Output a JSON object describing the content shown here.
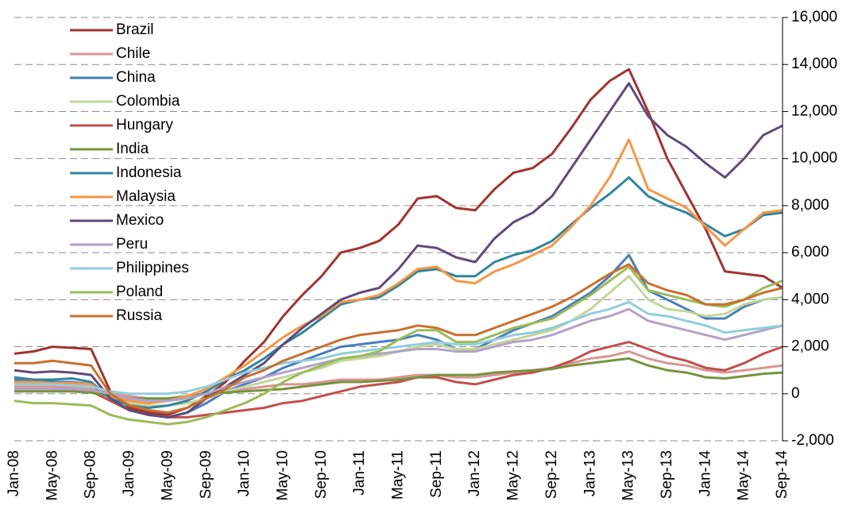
{
  "chart_data": {
    "type": "line",
    "categories": [
      "Jan-08",
      null,
      "May-08",
      null,
      "Sep-08",
      null,
      "Jan-09",
      null,
      "May-09",
      null,
      "Sep-09",
      null,
      "Jan-10",
      null,
      "May-10",
      null,
      "Sep-10",
      null,
      "Jan-11",
      null,
      "May-11",
      null,
      "Sep-11",
      null,
      "Jan-12",
      null,
      "May-12",
      null,
      "Sep-12",
      null,
      "Jan-13",
      null,
      "May-13",
      null,
      "Sep-13",
      null,
      "Jan-14",
      null,
      "May-14",
      null,
      "Sep-14"
    ],
    "ylim": [
      -2000,
      16000
    ],
    "yticks": [
      {
        "value": -2000,
        "label": "-2,000"
      },
      0,
      {
        "value": 2000,
        "label": "2,000"
      },
      {
        "value": 4000,
        "label": "4,000"
      },
      {
        "value": 6000,
        "label": "6,000"
      },
      {
        "value": 8000,
        "label": "8,000"
      },
      {
        "value": 10000,
        "label": "10,000"
      },
      {
        "value": 12000,
        "label": "12,000"
      },
      {
        "value": 14000,
        "label": "14,000"
      },
      {
        "value": 16000,
        "label": "16,000"
      }
    ],
    "grid": true,
    "legend": "upper left",
    "series": [
      {
        "name": "Brazil",
        "color": "#a0342f",
        "values": [
          1700,
          1800,
          2000,
          1950,
          1900,
          100,
          -600,
          -800,
          -900,
          -600,
          -100,
          500,
          1400,
          2200,
          3300,
          4200,
          5000,
          6000,
          6200,
          6500,
          7200,
          8300,
          8400,
          7900,
          7800,
          8700,
          9400,
          9600,
          10200,
          11300,
          12500,
          13300,
          13800,
          12000,
          10000,
          8500,
          7000,
          5200,
          5100,
          5000,
          4500
        ]
      },
      {
        "name": "Chile",
        "color": "#d99694",
        "values": [
          300,
          300,
          300,
          250,
          200,
          0,
          -100,
          -200,
          -200,
          -100,
          0,
          100,
          200,
          300,
          400,
          400,
          500,
          600,
          600,
          600,
          700,
          800,
          800,
          700,
          700,
          800,
          900,
          1000,
          1100,
          1300,
          1500,
          1600,
          1800,
          1500,
          1300,
          1200,
          1000,
          900,
          1000,
          1100,
          1200
        ]
      },
      {
        "name": "China",
        "color": "#4a7ebb",
        "values": [
          600,
          500,
          500,
          500,
          400,
          -300,
          -700,
          -900,
          -1000,
          -800,
          -400,
          100,
          400,
          700,
          1100,
          1400,
          1700,
          2000,
          2100,
          2200,
          2300,
          2500,
          2300,
          1900,
          1900,
          2300,
          2700,
          3000,
          3300,
          3800,
          4300,
          5000,
          5900,
          4400,
          4000,
          3600,
          3200,
          3200,
          3700,
          4000,
          4100
        ]
      },
      {
        "name": "Colombia",
        "color": "#c3d69b",
        "values": [
          100,
          100,
          100,
          100,
          50,
          -200,
          -400,
          -500,
          -500,
          -400,
          -200,
          100,
          300,
          500,
          700,
          900,
          1100,
          1400,
          1500,
          1600,
          1800,
          2000,
          2100,
          1900,
          1900,
          2100,
          2300,
          2500,
          2700,
          3100,
          3600,
          4300,
          5000,
          4000,
          3600,
          3500,
          3300,
          3400,
          3800,
          4000,
          4100
        ]
      },
      {
        "name": "Hungary",
        "color": "#c0504d",
        "values": [
          200,
          150,
          150,
          100,
          100,
          -300,
          -700,
          -900,
          -1000,
          -1000,
          -900,
          -800,
          -700,
          -600,
          -400,
          -300,
          -100,
          100,
          300,
          400,
          500,
          700,
          700,
          500,
          400,
          600,
          800,
          900,
          1100,
          1400,
          1800,
          2000,
          2200,
          1900,
          1600,
          1400,
          1100,
          1000,
          1300,
          1700,
          2000
        ]
      },
      {
        "name": "India",
        "color": "#77933c",
        "values": [
          100,
          100,
          100,
          100,
          50,
          -100,
          -200,
          -200,
          -200,
          -100,
          0,
          50,
          100,
          150,
          200,
          300,
          400,
          500,
          500,
          550,
          600,
          700,
          800,
          800,
          800,
          900,
          950,
          1000,
          1050,
          1200,
          1300,
          1400,
          1500,
          1200,
          1000,
          900,
          700,
          650,
          750,
          850,
          900
        ]
      },
      {
        "name": "Indonesia",
        "color": "#31859c",
        "values": [
          700,
          600,
          600,
          650,
          500,
          -200,
          -500,
          -600,
          -500,
          -300,
          100,
          600,
          1000,
          1500,
          2100,
          2600,
          3200,
          3800,
          4000,
          4100,
          4600,
          5200,
          5300,
          5000,
          5000,
          5600,
          5900,
          6100,
          6500,
          7200,
          7900,
          8500,
          9200,
          8400,
          8000,
          7700,
          7200,
          6700,
          7000,
          7600,
          7700
        ]
      },
      {
        "name": "Malaysia",
        "color": "#f79646",
        "values": [
          500,
          500,
          450,
          450,
          400,
          -100,
          -300,
          -400,
          -300,
          -100,
          200,
          700,
          1200,
          1800,
          2400,
          2900,
          3300,
          3900,
          4000,
          4200,
          4700,
          5300,
          5400,
          4800,
          4700,
          5200,
          5500,
          5900,
          6300,
          7100,
          8000,
          9200,
          10800,
          8700,
          8300,
          7900,
          7100,
          6300,
          7000,
          7700,
          7800
        ]
      },
      {
        "name": "Mexico",
        "color": "#604a7b",
        "values": [
          1000,
          900,
          950,
          900,
          800,
          -200,
          -700,
          -900,
          -1000,
          -800,
          -200,
          300,
          800,
          1300,
          2100,
          2800,
          3400,
          4000,
          4300,
          4500,
          5300,
          6300,
          6200,
          5800,
          5600,
          6600,
          7300,
          7700,
          8400,
          9600,
          10800,
          12000,
          13200,
          11800,
          11000,
          10500,
          9800,
          9200,
          10000,
          11000,
          11400
        ]
      },
      {
        "name": "Peru",
        "color": "#b3a2c7",
        "values": [
          200,
          200,
          200,
          200,
          150,
          0,
          -200,
          -300,
          -300,
          -200,
          0,
          300,
          500,
          700,
          900,
          1100,
          1300,
          1500,
          1600,
          1700,
          1800,
          1900,
          1900,
          1800,
          1800,
          2000,
          2200,
          2300,
          2500,
          2800,
          3100,
          3300,
          3600,
          3100,
          2900,
          2700,
          2500,
          2300,
          2500,
          2700,
          2900
        ]
      },
      {
        "name": "Philippines",
        "color": "#93cddd",
        "values": [
          400,
          400,
          400,
          350,
          300,
          100,
          0,
          0,
          0,
          100,
          300,
          600,
          900,
          1100,
          1300,
          1400,
          1500,
          1700,
          1800,
          1900,
          2000,
          2100,
          2200,
          2100,
          2100,
          2300,
          2500,
          2600,
          2800,
          3100,
          3400,
          3600,
          3900,
          3400,
          3300,
          3100,
          2900,
          2600,
          2700,
          2800,
          2900
        ]
      },
      {
        "name": "Poland",
        "color": "#9bbb59",
        "values": [
          -300,
          -400,
          -400,
          -450,
          -500,
          -900,
          -1100,
          -1200,
          -1300,
          -1200,
          -1000,
          -700,
          -400,
          0,
          500,
          900,
          1200,
          1500,
          1600,
          1800,
          2300,
          2700,
          2700,
          2200,
          2200,
          2500,
          2800,
          3000,
          3200,
          3700,
          4200,
          4800,
          5400,
          4400,
          4200,
          4000,
          3800,
          3700,
          4000,
          4500,
          4800
        ]
      },
      {
        "name": "Russia",
        "color": "#c8702e",
        "values": [
          1300,
          1300,
          1400,
          1300,
          1200,
          0,
          -500,
          -700,
          -800,
          -600,
          -200,
          200,
          700,
          1000,
          1400,
          1700,
          2000,
          2300,
          2500,
          2600,
          2700,
          2900,
          2800,
          2500,
          2500,
          2800,
          3100,
          3400,
          3700,
          4100,
          4600,
          5100,
          5500,
          4700,
          4400,
          4200,
          3800,
          3800,
          4000,
          4300,
          4500
        ]
      }
    ]
  }
}
